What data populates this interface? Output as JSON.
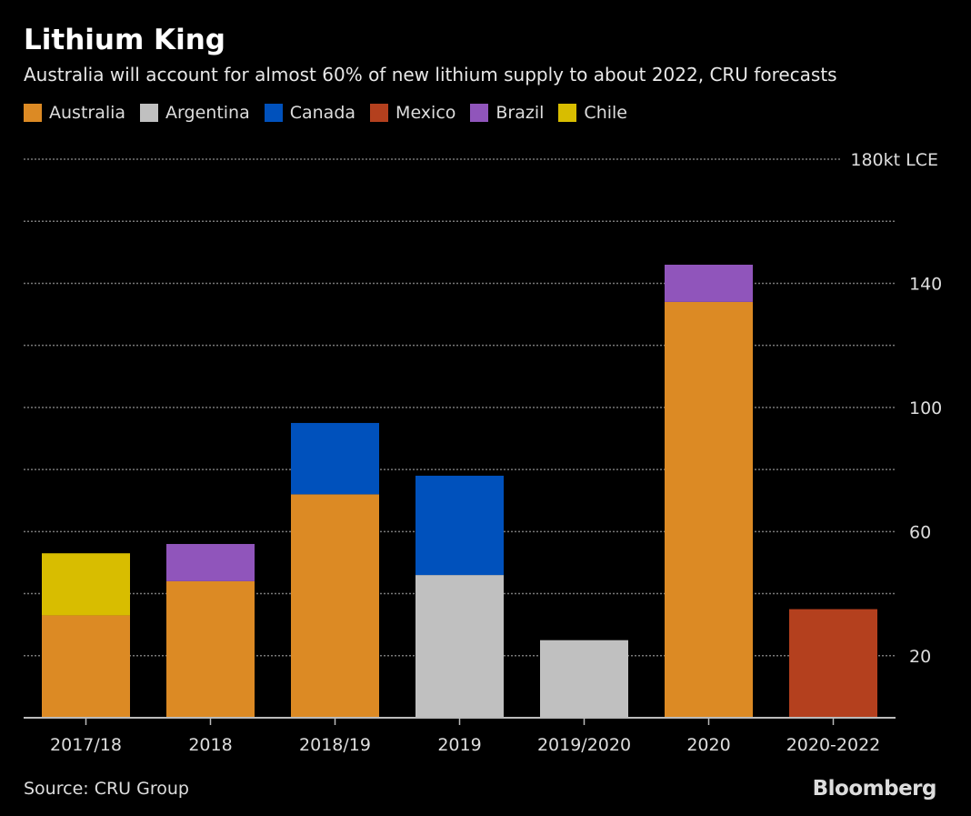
{
  "chart_data": {
    "type": "bar",
    "stacked": true,
    "title": "Lithium King",
    "subtitle": "Australia will account for almost 60% of new lithium supply to about 2022, CRU forecasts",
    "categories": [
      "2017/18",
      "2018",
      "2018/19",
      "2019",
      "2019/2020",
      "2020",
      "2020-2022"
    ],
    "series": [
      {
        "name": "Australia",
        "color": "#dc8a24",
        "values": [
          33,
          44,
          72,
          0,
          0,
          134,
          0
        ]
      },
      {
        "name": "Argentina",
        "color": "#c0c0c0",
        "values": [
          0,
          0,
          0,
          46,
          25,
          0,
          0
        ]
      },
      {
        "name": "Canada",
        "color": "#0051bc",
        "values": [
          0,
          0,
          23,
          32,
          0,
          0,
          0
        ]
      },
      {
        "name": "Mexico",
        "color": "#b4401e",
        "values": [
          0,
          0,
          0,
          0,
          0,
          0,
          35
        ]
      },
      {
        "name": "Brazil",
        "color": "#9055bb",
        "values": [
          0,
          12,
          0,
          0,
          0,
          12,
          0
        ]
      },
      {
        "name": "Chile",
        "color": "#d8bd00",
        "values": [
          20,
          0,
          0,
          0,
          0,
          0,
          0
        ]
      }
    ],
    "ylim": [
      0,
      180
    ],
    "yticks": [
      20,
      60,
      100,
      140,
      180
    ],
    "ytick_labels": [
      "20",
      "60",
      "100",
      "140",
      "180kt LCE"
    ],
    "grid": true,
    "legend_placement": "top-left",
    "source": "Source: CRU Group",
    "logo": "Bloomberg"
  }
}
